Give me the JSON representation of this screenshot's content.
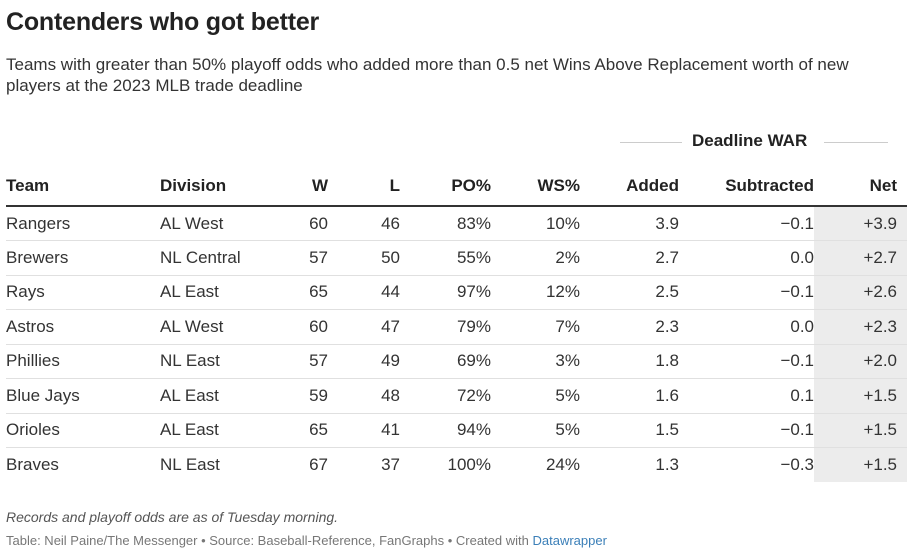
{
  "title": "Contenders who got better",
  "subtitle": "Teams with greater than 50% playoff odds who added more than 0.5 net Wins Above Replacement worth of new players at the 2023 MLB trade deadline",
  "group_header": "Deadline WAR",
  "notes": "Records and playoff odds are as of Tuesday morning.",
  "footer": {
    "text": "Table: Neil Paine/The Messenger • Source: Baseball-Reference, FanGraphs • Created with ",
    "link": "Datawrapper"
  },
  "colors": {
    "net_background": "#ececec",
    "link": "#3b7fb8",
    "header_rule": "#333333"
  },
  "chart_data": {
    "type": "table",
    "columns": [
      "Team",
      "Division",
      "W",
      "L",
      "PO%",
      "WS%",
      "Added",
      "Subtracted",
      "Net"
    ],
    "rows": [
      [
        "Rangers",
        "AL West",
        "60",
        "46",
        "83%",
        "10%",
        "3.9",
        "−0.1",
        "+3.9"
      ],
      [
        "Brewers",
        "NL Central",
        "57",
        "50",
        "55%",
        "2%",
        "2.7",
        "0.0",
        "+2.7"
      ],
      [
        "Rays",
        "AL East",
        "65",
        "44",
        "97%",
        "12%",
        "2.5",
        "−0.1",
        "+2.6"
      ],
      [
        "Astros",
        "AL West",
        "60",
        "47",
        "79%",
        "7%",
        "2.3",
        "0.0",
        "+2.3"
      ],
      [
        "Phillies",
        "NL East",
        "57",
        "49",
        "69%",
        "3%",
        "1.8",
        "−0.1",
        "+2.0"
      ],
      [
        "Blue Jays",
        "AL East",
        "59",
        "48",
        "72%",
        "5%",
        "1.6",
        "0.1",
        "+1.5"
      ],
      [
        "Orioles",
        "AL East",
        "65",
        "41",
        "94%",
        "5%",
        "1.5",
        "−0.1",
        "+1.5"
      ],
      [
        "Braves",
        "NL East",
        "67",
        "37",
        "100%",
        "24%",
        "1.3",
        "−0.3",
        "+1.5"
      ]
    ]
  }
}
